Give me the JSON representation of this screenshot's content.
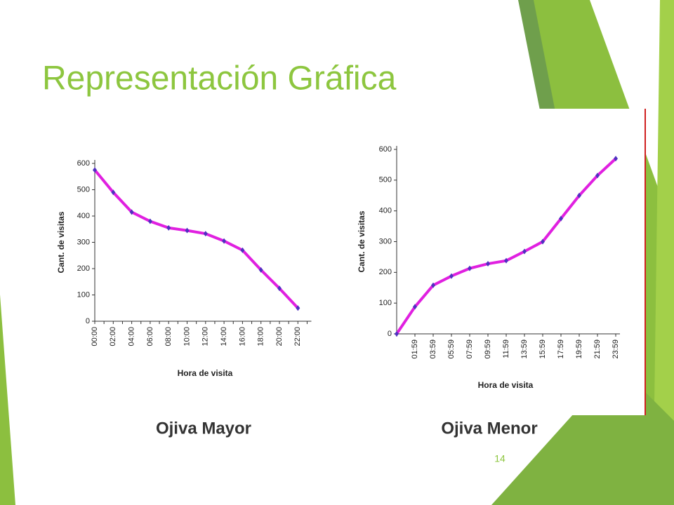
{
  "title": "Representación Gráfica",
  "captions": [
    "Ojiva Mayor",
    "Ojiva Menor"
  ],
  "page_number": "14",
  "chart_data": [
    {
      "type": "line",
      "ylabel": "Cant. de visitas",
      "xlabel": "Hora de visita",
      "categories": [
        "00:00",
        null,
        "02:00",
        null,
        "04:00",
        null,
        "06:00",
        null,
        "08:00",
        null,
        "10:00",
        null,
        "12:00",
        null,
        "14:00",
        null,
        "16:00",
        null,
        "18:00",
        null,
        "20:00",
        null,
        "22:00",
        null
      ],
      "series": [
        {
          "name": "Ojiva Mayor",
          "color": "#e020e0",
          "values": [
            575,
            null,
            490,
            null,
            415,
            null,
            380,
            null,
            355,
            null,
            345,
            null,
            333,
            null,
            305,
            null,
            270,
            null,
            195,
            null,
            125,
            null,
            50,
            null
          ]
        }
      ],
      "ylim": [
        0,
        600
      ],
      "yticks": [
        0,
        100,
        200,
        300,
        400,
        500,
        600
      ]
    },
    {
      "type": "line",
      "ylabel": "Cant. de visitas",
      "xlabel": "Hora de visita",
      "categories": [
        null,
        "01:59",
        "03:59",
        "05:59",
        "07:59",
        "09:59",
        "11:59",
        "13:59",
        "15:59",
        "17:59",
        "19:59",
        "21:59",
        "23:59"
      ],
      "series": [
        {
          "name": "Ojiva Menor",
          "color": "#e020e0",
          "values": [
            0,
            88,
            158,
            188,
            213,
            228,
            238,
            268,
            300,
            375,
            450,
            515,
            570
          ]
        }
      ],
      "ylim": [
        0,
        600
      ],
      "yticks": [
        0,
        100,
        200,
        300,
        400,
        500,
        600
      ]
    }
  ]
}
